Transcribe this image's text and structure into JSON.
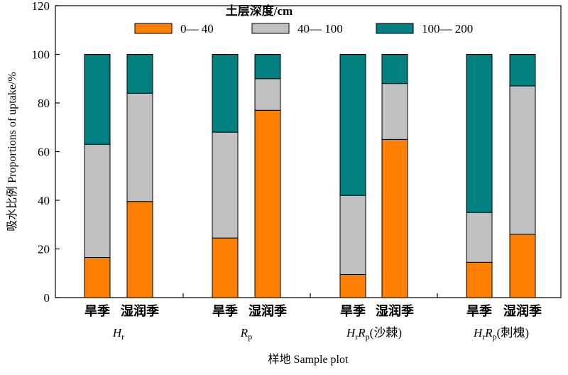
{
  "chart_data": {
    "type": "bar",
    "stacked": true,
    "legend": {
      "title": "土层深度/cm",
      "placement": "top"
    },
    "series": [
      {
        "name": "0— 40",
        "color": "#ff7f00",
        "values": [
          16.5,
          39.5,
          24.5,
          77,
          9.5,
          65,
          14.5,
          26
        ]
      },
      {
        "name": "40— 100",
        "color": "#c0c0c0",
        "values": [
          46.5,
          44.5,
          43.5,
          13,
          32.5,
          23,
          20.5,
          61
        ]
      },
      {
        "name": "100— 200",
        "color": "#008080",
        "values": [
          37,
          16,
          32,
          10,
          58,
          12,
          65,
          13
        ]
      }
    ],
    "categories": [
      "旱季",
      "湿润季",
      "旱季",
      "湿润季",
      "旱季",
      "湿润季",
      "旱季",
      "湿润季"
    ],
    "groups": [
      {
        "base": "H",
        "sub": "r",
        "base2": "",
        "sub2": "",
        "suffix": ""
      },
      {
        "base": "R",
        "sub": "p",
        "base2": "",
        "sub2": "",
        "suffix": ""
      },
      {
        "base": "H",
        "sub": "r",
        "base2": "R",
        "sub2": "p",
        "suffix": "(沙棘)"
      },
      {
        "base": "H",
        "sub": "r",
        "base2": "R",
        "sub2": "p",
        "suffix": "(刺槐)"
      }
    ],
    "ylim": [
      0,
      120
    ],
    "yticks": [
      0,
      20,
      40,
      60,
      80,
      100,
      120
    ],
    "ylabel": "吸水比例 Proportions of uptake/%",
    "xlabel": "样地 Sample plot",
    "grid": false
  }
}
